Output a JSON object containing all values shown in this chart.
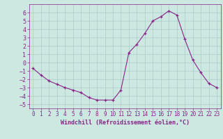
{
  "x": [
    0,
    1,
    2,
    3,
    4,
    5,
    6,
    7,
    8,
    9,
    10,
    11,
    12,
    13,
    14,
    15,
    16,
    17,
    18,
    19,
    20,
    21,
    22,
    23
  ],
  "y": [
    -0.7,
    -1.5,
    -2.2,
    -2.6,
    -3.0,
    -3.3,
    -3.6,
    -4.2,
    -4.5,
    -4.5,
    -4.5,
    -3.3,
    1.2,
    2.2,
    3.5,
    5.0,
    5.5,
    6.2,
    5.7,
    2.8,
    0.3,
    -1.2,
    -2.5,
    -3.0
  ],
  "line_color": "#882288",
  "marker": "+",
  "bg_color": "#cce8e0",
  "grid_color": "#aacccc",
  "xlabel": "Windchill (Refroidissement éolien,°C)",
  "xlabel_color": "#882288",
  "tick_color": "#882288",
  "ylim": [
    -5.5,
    7.0
  ],
  "xlim": [
    -0.5,
    23.5
  ],
  "yticks": [
    -5,
    -4,
    -3,
    -2,
    -1,
    0,
    1,
    2,
    3,
    4,
    5,
    6
  ],
  "xticks": [
    0,
    1,
    2,
    3,
    4,
    5,
    6,
    7,
    8,
    9,
    10,
    11,
    12,
    13,
    14,
    15,
    16,
    17,
    18,
    19,
    20,
    21,
    22,
    23
  ]
}
